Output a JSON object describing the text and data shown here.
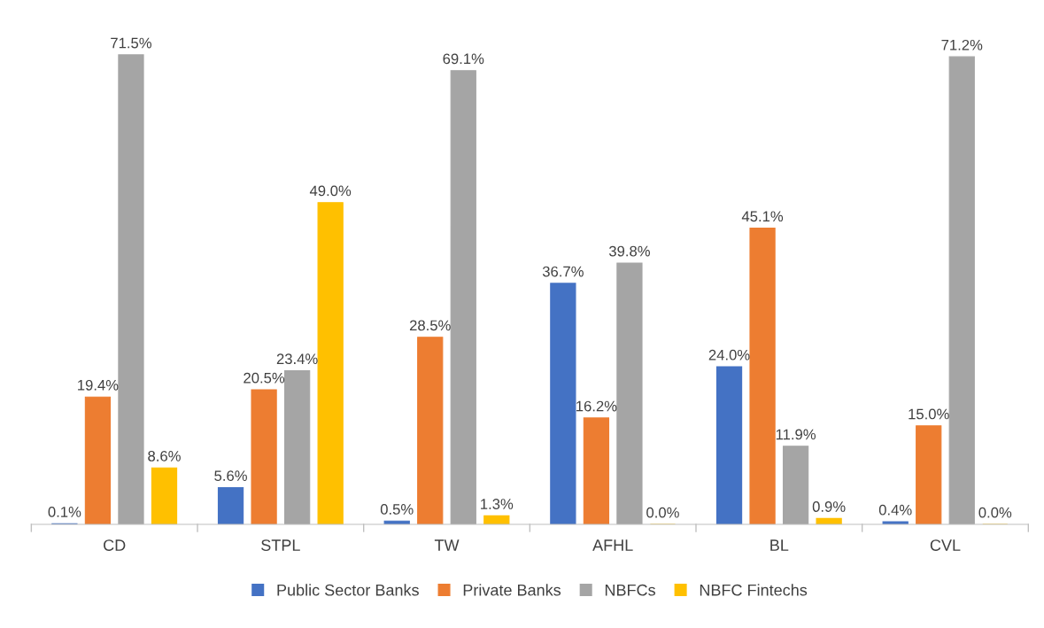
{
  "chart_data": {
    "type": "bar",
    "categories": [
      "CD",
      "STPL",
      "TW",
      "AFHL",
      "BL",
      "CVL"
    ],
    "series": [
      {
        "name": "Public Sector Banks",
        "color": "#4472c4",
        "values": [
          0.1,
          5.6,
          0.5,
          36.7,
          24.0,
          0.4
        ],
        "value_labels": [
          "0.1%",
          "5.6%",
          "0.5%",
          "36.7%",
          "24.0%",
          "0.4%"
        ]
      },
      {
        "name": "Private Banks",
        "color": "#ed7d31",
        "values": [
          19.4,
          20.5,
          28.5,
          16.2,
          45.1,
          15.0
        ],
        "value_labels": [
          "19.4%",
          "20.5%",
          "28.5%",
          "16.2%",
          "45.1%",
          "15.0%"
        ]
      },
      {
        "name": "NBFCs",
        "color": "#a5a5a5",
        "values": [
          71.5,
          23.4,
          69.1,
          39.8,
          11.9,
          71.2
        ],
        "value_labels": [
          "71.5%",
          "23.4%",
          "69.1%",
          "39.8%",
          "11.9%",
          "71.2%"
        ]
      },
      {
        "name": "NBFC Fintechs",
        "color": "#ffc000",
        "values": [
          8.6,
          49.0,
          1.3,
          0.0,
          0.9,
          0.0
        ],
        "value_labels": [
          "8.6%",
          "49.0%",
          "1.3%",
          "0.0%",
          "0.9%",
          "0.0%"
        ]
      }
    ],
    "legend": "bottom"
  }
}
